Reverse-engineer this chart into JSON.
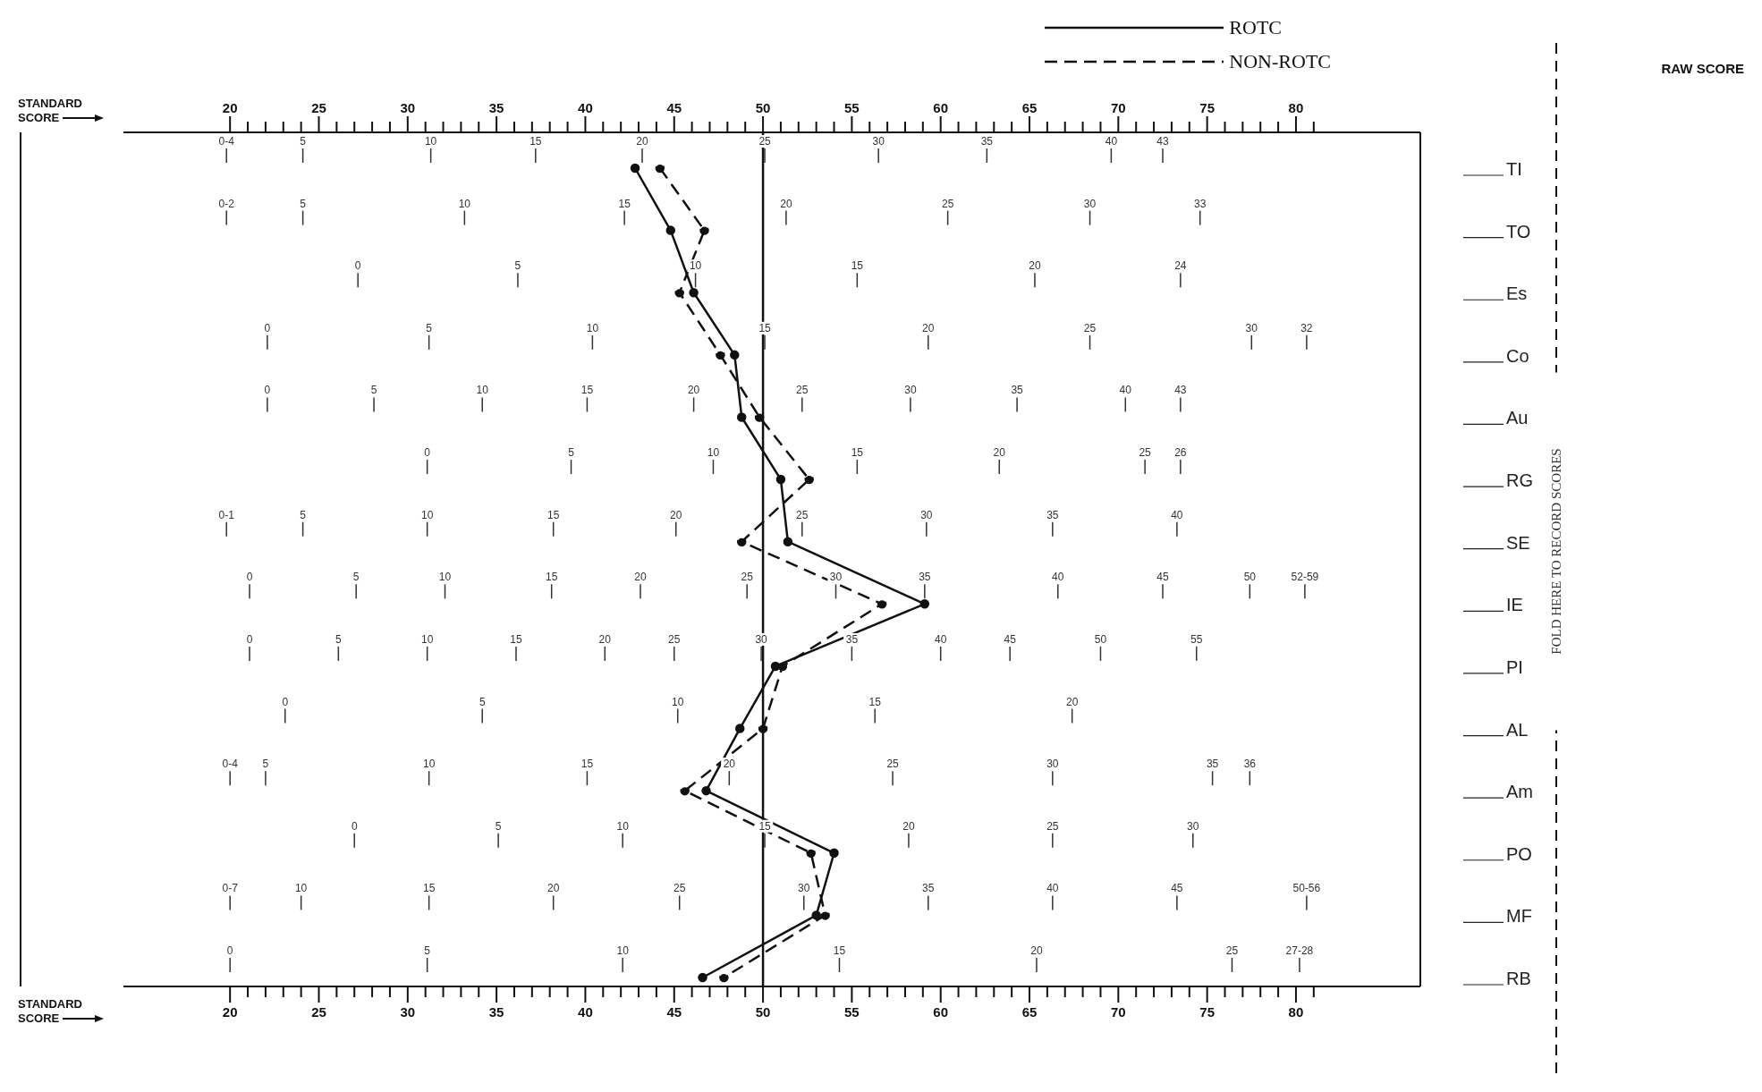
{
  "chart_data": {
    "type": "line",
    "orientation": "horizontal",
    "xlabel": "STANDARD SCORE",
    "x2label": "STANDARD SCORE",
    "categories": [
      "TI",
      "TO",
      "Es",
      "Co",
      "Au",
      "RG",
      "SE",
      "IE",
      "PI",
      "AL",
      "Am",
      "PO",
      "MF",
      "RB"
    ],
    "series": [
      {
        "name": "ROTC",
        "color": "#111111",
        "line_style": "solid",
        "values": [
          42.8,
          44.8,
          46.1,
          48.4,
          48.8,
          51.0,
          51.4,
          59.1,
          50.7,
          48.7,
          46.8,
          54.0,
          53.0,
          46.6
        ]
      },
      {
        "name": "NON-ROTC",
        "color": "#111111",
        "line_style": "dashed",
        "values": [
          44.2,
          46.7,
          45.3,
          47.6,
          49.8,
          52.6,
          48.8,
          56.7,
          51.1,
          50.0,
          45.6,
          52.7,
          53.5,
          47.8
        ]
      }
    ],
    "marker": "circle",
    "legend": "top right",
    "xlim": [
      14,
      87
    ],
    "x2lim": [
      14,
      87
    ],
    "xticks": [
      20,
      {
        "value": 21,
        "label": null
      },
      {
        "value": 22,
        "label": null
      },
      {
        "value": 23,
        "label": null
      },
      {
        "value": 24,
        "label": null
      },
      25,
      {
        "value": 26,
        "label": null
      },
      {
        "value": 27,
        "label": null
      },
      {
        "value": 28,
        "label": null
      },
      {
        "value": 29,
        "label": null
      },
      30,
      {
        "value": 31,
        "label": null
      },
      {
        "value": 32,
        "label": null
      },
      {
        "value": 33,
        "label": null
      },
      {
        "value": 34,
        "label": null
      },
      35,
      {
        "value": 36,
        "label": null
      },
      {
        "value": 37,
        "label": null
      },
      {
        "value": 38,
        "label": null
      },
      {
        "value": 39,
        "label": null
      },
      40,
      {
        "value": 41,
        "label": null
      },
      {
        "value": 42,
        "label": null
      },
      {
        "value": 43,
        "label": null
      },
      {
        "value": 44,
        "label": null
      },
      45,
      {
        "value": 46,
        "label": null
      },
      {
        "value": 47,
        "label": null
      },
      {
        "value": 48,
        "label": null
      },
      {
        "value": 49,
        "label": null
      },
      50,
      {
        "value": 51,
        "label": null
      },
      {
        "value": 52,
        "label": null
      },
      {
        "value": 53,
        "label": null
      },
      {
        "value": 54,
        "label": null
      },
      55,
      {
        "value": 56,
        "label": null
      },
      {
        "value": 57,
        "label": null
      },
      {
        "value": 58,
        "label": null
      },
      {
        "value": 59,
        "label": null
      },
      60,
      {
        "value": 61,
        "label": null
      },
      {
        "value": 62,
        "label": null
      },
      {
        "value": 63,
        "label": null
      },
      {
        "value": 64,
        "label": null
      },
      65,
      {
        "value": 66,
        "label": null
      },
      {
        "value": 67,
        "label": null
      },
      {
        "value": 68,
        "label": null
      },
      {
        "value": 69,
        "label": null
      },
      70,
      {
        "value": 71,
        "label": null
      },
      {
        "value": 72,
        "label": null
      },
      {
        "value": 73,
        "label": null
      },
      {
        "value": 74,
        "label": null
      },
      75,
      {
        "value": 76,
        "label": null
      },
      {
        "value": 77,
        "label": null
      },
      {
        "value": 78,
        "label": null
      },
      {
        "value": 79,
        "label": null
      },
      80,
      {
        "value": 81,
        "label": null
      }
    ],
    "x2ticks": [
      20,
      {
        "value": 21,
        "label": null
      },
      {
        "value": 22,
        "label": null
      },
      {
        "value": 23,
        "label": null
      },
      {
        "value": 24,
        "label": null
      },
      25,
      {
        "value": 26,
        "label": null
      },
      {
        "value": 27,
        "label": null
      },
      {
        "value": 28,
        "label": null
      },
      {
        "value": 29,
        "label": null
      },
      30,
      {
        "value": 31,
        "label": null
      },
      {
        "value": 32,
        "label": null
      },
      {
        "value": 33,
        "label": null
      },
      {
        "value": 34,
        "label": null
      },
      35,
      {
        "value": 36,
        "label": null
      },
      {
        "value": 37,
        "label": null
      },
      {
        "value": 38,
        "label": null
      },
      {
        "value": 39,
        "label": null
      },
      40,
      {
        "value": 41,
        "label": null
      },
      {
        "value": 42,
        "label": null
      },
      {
        "value": 43,
        "label": null
      },
      {
        "value": 44,
        "label": null
      },
      45,
      {
        "value": 46,
        "label": null
      },
      {
        "value": 47,
        "label": null
      },
      {
        "value": 48,
        "label": null
      },
      {
        "value": 49,
        "label": null
      },
      50,
      {
        "value": 51,
        "label": null
      },
      {
        "value": 52,
        "label": null
      },
      {
        "value": 53,
        "label": null
      },
      {
        "value": 54,
        "label": null
      },
      55,
      {
        "value": 56,
        "label": null
      },
      {
        "value": 57,
        "label": null
      },
      {
        "value": 58,
        "label": null
      },
      {
        "value": 59,
        "label": null
      },
      60,
      {
        "value": 61,
        "label": null
      },
      {
        "value": 62,
        "label": null
      },
      {
        "value": 63,
        "label": null
      },
      {
        "value": 64,
        "label": null
      },
      65,
      {
        "value": 66,
        "label": null
      },
      {
        "value": 67,
        "label": null
      },
      {
        "value": 68,
        "label": null
      },
      {
        "value": 69,
        "label": null
      },
      70,
      {
        "value": 71,
        "label": null
      },
      {
        "value": 72,
        "label": null
      },
      {
        "value": 73,
        "label": null
      },
      {
        "value": 74,
        "label": null
      },
      75,
      {
        "value": 76,
        "label": null
      },
      {
        "value": 77,
        "label": null
      },
      {
        "value": 78,
        "label": null
      },
      {
        "value": 79,
        "label": null
      },
      80,
      {
        "value": 81,
        "label": null
      }
    ],
    "ref_lines": [
      {
        "axis": "x",
        "value": 50,
        "color": "#111111"
      }
    ],
    "annotations": [
      "FOLD HERE TO RECORD SCORES",
      "RAW SCORE",
      "0-4",
      "5",
      "10",
      "15",
      "20",
      "25",
      "30",
      "35",
      "40",
      "43",
      "0-2",
      "5",
      "10",
      "15",
      "20",
      "25",
      "30",
      "33",
      "0",
      "5",
      "10",
      "15",
      "20",
      "24",
      "0",
      "5",
      "10",
      "15",
      "20",
      "25",
      "30",
      "32",
      "0",
      "5",
      "10",
      "15",
      "20",
      "25",
      "30",
      "35",
      "40",
      "43",
      "0",
      "5",
      "10",
      "15",
      "20",
      "25",
      "26",
      "0-1",
      "5",
      "10",
      "15",
      "20",
      "25",
      "30",
      "35",
      "40",
      "0",
      "5",
      "10",
      "15",
      "20",
      "25",
      "30",
      "35",
      "40",
      "45",
      "50",
      "52-59",
      "0",
      "5",
      "10",
      "15",
      "20",
      "25",
      "30",
      "35",
      "40",
      "45",
      "50",
      "55",
      "0",
      "5",
      "10",
      "15",
      "20",
      "0-4",
      "5",
      "10",
      "15",
      "20",
      "25",
      "30",
      "35",
      "36",
      "0",
      "5",
      "10",
      "15",
      "20",
      "25",
      "30",
      "0-7",
      "10",
      "15",
      "20",
      "25",
      "30",
      "35",
      "40",
      "45",
      "50-56",
      "0",
      "5",
      "10",
      "15",
      "20",
      "25",
      "27-28"
    ]
  }
}
